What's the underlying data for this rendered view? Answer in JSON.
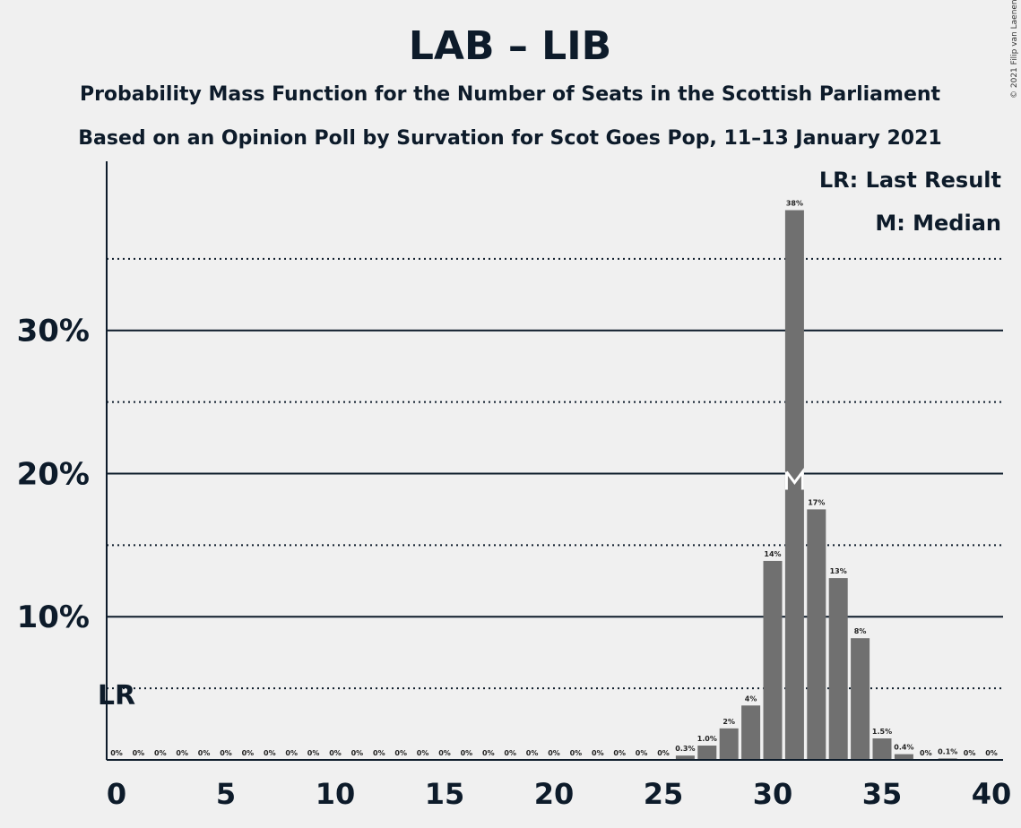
{
  "chart_data": {
    "type": "bar",
    "title": "LAB – LIB",
    "subtitle_1": "Probability Mass Function for the Number of Seats in the Scottish Parliament",
    "subtitle_2": "Based on an Opinion Poll by Survation for Scot Goes Pop, 11–13 January 2021",
    "copyright": "© 2021 Filip van Laenen",
    "legend": [
      "LR: Last Result",
      "M: Median"
    ],
    "last_result": {
      "seat": 0,
      "label": "LR"
    },
    "median": {
      "seat": 31,
      "label": "M"
    },
    "x": [
      0,
      1,
      2,
      3,
      4,
      5,
      6,
      7,
      8,
      9,
      10,
      11,
      12,
      13,
      14,
      15,
      16,
      17,
      18,
      19,
      20,
      21,
      22,
      23,
      24,
      25,
      26,
      27,
      28,
      29,
      30,
      31,
      32,
      33,
      34,
      35,
      36,
      37,
      38,
      39,
      40
    ],
    "values": [
      0,
      0,
      0,
      0,
      0,
      0,
      0,
      0,
      0,
      0,
      0,
      0,
      0,
      0,
      0,
      0,
      0,
      0,
      0,
      0,
      0,
      0,
      0,
      0,
      0,
      0,
      0.3,
      1.0,
      2.2,
      3.8,
      13.9,
      38.4,
      17.5,
      12.7,
      8.5,
      1.5,
      0.4,
      0,
      0.1,
      0,
      0
    ],
    "value_labels": [
      "0%",
      "0%",
      "0%",
      "0%",
      "0%",
      "0%",
      "0%",
      "0%",
      "0%",
      "0%",
      "0%",
      "0%",
      "0%",
      "0%",
      "0%",
      "0%",
      "0%",
      "0%",
      "0%",
      "0%",
      "0%",
      "0%",
      "0%",
      "0%",
      "0%",
      "0%",
      "0.3%",
      "1.0%",
      "2%",
      "4%",
      "14%",
      "38%",
      "17%",
      "13%",
      "8%",
      "1.5%",
      "0.4%",
      "0%",
      "0.1%",
      "0%",
      "0%"
    ],
    "xticks": [
      0,
      5,
      10,
      15,
      20,
      25,
      30,
      35,
      40
    ],
    "yticks_major": [
      10,
      20,
      30
    ],
    "ytick_labels": [
      "10%",
      "20%",
      "30%"
    ],
    "ygrid_minor": [
      5,
      15,
      25,
      35
    ],
    "ylim": [
      0,
      41.5
    ],
    "xlim": [
      0,
      40
    ],
    "bar_color": "#707070",
    "text_color": "#0d1b2a"
  }
}
